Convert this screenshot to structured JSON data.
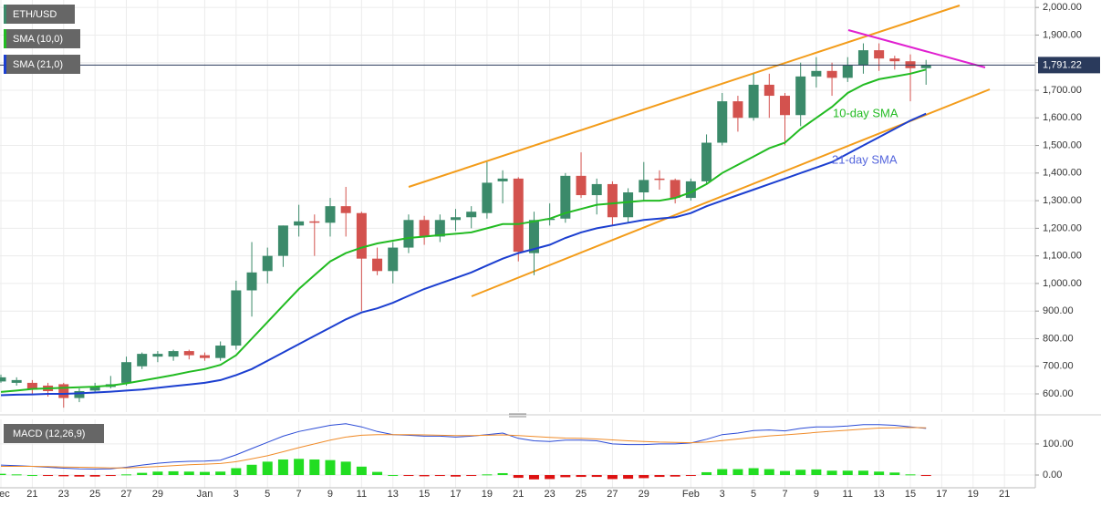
{
  "chart_data": [
    {
      "type": "candlestick",
      "name": "ETH/USD",
      "categories": [
        "Dec",
        null,
        "21",
        null,
        "23",
        null,
        "25",
        null,
        "27",
        null,
        "29",
        null,
        null,
        "Jan",
        null,
        "3",
        null,
        "5",
        null,
        "7",
        null,
        "9",
        null,
        "11",
        null,
        "13",
        null,
        "15",
        null,
        "17",
        null,
        "19",
        null,
        "21",
        null,
        "23",
        null,
        "25",
        null,
        "27",
        null,
        "29",
        null,
        null,
        "Feb",
        null,
        "3",
        null,
        "5",
        null,
        "7",
        null,
        "9",
        null,
        "11",
        null,
        "13",
        null,
        "15",
        null,
        "17",
        null,
        "19",
        null,
        "21"
      ],
      "open": [
        645,
        640,
        640,
        630,
        635,
        585,
        612,
        625,
        640,
        700,
        735,
        735,
        755,
        740,
        730,
        775,
        975,
        1045,
        1100,
        1210,
        1225,
        1220,
        1280,
        1255,
        1090,
        1045,
        1130,
        1230,
        1170,
        1230,
        1240,
        1255,
        1370,
        1380,
        1110,
        1230,
        1235,
        1390,
        1320,
        1360,
        1240,
        1330,
        1380,
        1375,
        1310,
        1370,
        1510,
        1660,
        1600,
        1720,
        1680,
        1610,
        1750,
        1770,
        1745,
        1790,
        1845,
        1815,
        1805,
        1780,
        null,
        null,
        null,
        null,
        null
      ],
      "high": [
        670,
        660,
        650,
        640,
        640,
        620,
        640,
        665,
        735,
        750,
        755,
        760,
        760,
        750,
        790,
        1010,
        1150,
        1130,
        1210,
        1285,
        1250,
        1310,
        1350,
        1260,
        1130,
        1150,
        1250,
        1245,
        1250,
        1270,
        1280,
        1440,
        1410,
        1385,
        1260,
        1290,
        1400,
        1475,
        1380,
        1370,
        1345,
        1440,
        1410,
        1380,
        1380,
        1540,
        1690,
        1680,
        1760,
        1760,
        1690,
        1800,
        1820,
        1800,
        1820,
        1870,
        1870,
        1825,
        1830,
        1810,
        null,
        null,
        null,
        null,
        null
      ],
      "low": [
        640,
        630,
        600,
        590,
        550,
        570,
        605,
        620,
        630,
        690,
        715,
        720,
        725,
        720,
        720,
        760,
        880,
        1000,
        1060,
        1170,
        1100,
        1170,
        1170,
        900,
        1030,
        1000,
        1110,
        1140,
        1150,
        1190,
        1200,
        1235,
        1290,
        1080,
        1030,
        1210,
        1220,
        1310,
        1250,
        1210,
        1220,
        1300,
        1340,
        1290,
        1300,
        1360,
        1500,
        1550,
        1590,
        1600,
        1500,
        1570,
        1710,
        1680,
        1730,
        1760,
        1770,
        1775,
        1660,
        1720,
        null,
        null,
        null,
        null,
        null
      ],
      "close": [
        660,
        650,
        615,
        610,
        585,
        610,
        625,
        635,
        715,
        745,
        745,
        755,
        740,
        730,
        775,
        975,
        1040,
        1100,
        1210,
        1225,
        1220,
        1280,
        1255,
        1090,
        1045,
        1130,
        1230,
        1170,
        1230,
        1240,
        1260,
        1365,
        1380,
        1115,
        1230,
        1235,
        1390,
        1320,
        1360,
        1240,
        1330,
        1375,
        1375,
        1310,
        1370,
        1510,
        1660,
        1600,
        1720,
        1680,
        1610,
        1750,
        1770,
        1745,
        1790,
        1845,
        1815,
        1805,
        1780,
        1791.22,
        null,
        null,
        null,
        null,
        null
      ],
      "up_color": "#3b8a6a",
      "down_color": "#d3524e",
      "series": [
        {
          "name": "SMA (10,0)",
          "color": "#22bb22",
          "values": [
            607,
            612,
            618,
            620,
            622,
            624,
            626,
            630,
            638,
            648,
            658,
            668,
            680,
            690,
            705,
            740,
            800,
            860,
            920,
            980,
            1030,
            1080,
            1110,
            1130,
            1145,
            1155,
            1165,
            1170,
            1175,
            1180,
            1185,
            1200,
            1215,
            1215,
            1225,
            1235,
            1255,
            1270,
            1285,
            1290,
            1295,
            1300,
            1300,
            1310,
            1330,
            1360,
            1400,
            1430,
            1460,
            1490,
            1510,
            1560,
            1600,
            1640,
            1690,
            1720,
            1740,
            1750,
            1760,
            1775,
            null,
            null,
            null,
            null,
            null
          ]
        },
        {
          "name": "SMA (21,0)",
          "color": "#1c3fd0",
          "values": [
            595,
            597,
            598,
            600,
            600,
            602,
            605,
            608,
            612,
            616,
            622,
            628,
            634,
            640,
            650,
            668,
            690,
            720,
            750,
            780,
            810,
            840,
            870,
            895,
            910,
            930,
            955,
            980,
            1000,
            1020,
            1040,
            1065,
            1090,
            1110,
            1125,
            1140,
            1165,
            1185,
            1200,
            1210,
            1220,
            1230,
            1235,
            1240,
            1255,
            1280,
            1300,
            1320,
            1340,
            1360,
            1380,
            1400,
            1420,
            1440,
            1470,
            1500,
            1530,
            1560,
            1590,
            1615,
            null,
            null,
            null,
            null,
            null
          ]
        }
      ],
      "annotations": [
        "10-day SMA",
        "21-day SMA"
      ],
      "last_price": {
        "value": 1791.22,
        "label": "1,791.22"
      },
      "ylim": [
        534,
        2027
      ],
      "yticks": [
        {
          "value": 600,
          "label": "600.00"
        },
        {
          "value": 700,
          "label": "700.00"
        },
        {
          "value": 800,
          "label": "800.00"
        },
        {
          "value": 900,
          "label": "900.00"
        },
        {
          "value": 1000,
          "label": "1,000.00"
        },
        {
          "value": 1100,
          "label": "1,100.00"
        },
        {
          "value": 1200,
          "label": "1,200.00"
        },
        {
          "value": 1300,
          "label": "1,300.00"
        },
        {
          "value": 1400,
          "label": "1,400.00"
        },
        {
          "value": 1500,
          "label": "1,500.00"
        },
        {
          "value": 1600,
          "label": "1,600.00"
        },
        {
          "value": 1700,
          "label": "1,700.00"
        },
        {
          "value": 1800,
          "label": "1,800.00"
        },
        {
          "value": 1900,
          "label": "1,900.00"
        },
        {
          "value": 2000,
          "label": "2,000.00"
        }
      ],
      "grid": true
    },
    {
      "type": "macd",
      "name": "MACD (12,26,9)",
      "series": [
        {
          "color": "#2b4bd6",
          "values": [
            32,
            30,
            28,
            25,
            22,
            20,
            19,
            20,
            25,
            32,
            38,
            42,
            44,
            45,
            48,
            65,
            85,
            105,
            125,
            140,
            150,
            160,
            165,
            155,
            140,
            130,
            128,
            125,
            125,
            122,
            125,
            130,
            135,
            118,
            110,
            108,
            112,
            112,
            110,
            100,
            98,
            98,
            100,
            100,
            103,
            115,
            130,
            135,
            143,
            145,
            142,
            150,
            155,
            155,
            158,
            162,
            162,
            160,
            155,
            150,
            null,
            null,
            null,
            null,
            null
          ]
        },
        {
          "color": "#f08c2a",
          "values": [
            28,
            28,
            28,
            27,
            26,
            25,
            24,
            23,
            23,
            25,
            27,
            30,
            33,
            35,
            37,
            43,
            52,
            62,
            75,
            88,
            100,
            112,
            122,
            128,
            130,
            130,
            130,
            129,
            128,
            127,
            127,
            128,
            129,
            127,
            124,
            121,
            119,
            118,
            116,
            113,
            110,
            108,
            106,
            105,
            104,
            106,
            111,
            116,
            121,
            126,
            129,
            133,
            137,
            141,
            144,
            148,
            151,
            152,
            153,
            152,
            null,
            null,
            null,
            null,
            null
          ]
        }
      ],
      "histogram": {
        "up_color": "#22dd22",
        "down_color": "#dd1111",
        "values": [
          4,
          2,
          0,
          -2,
          -4,
          -5,
          -5,
          -3,
          2,
          7,
          11,
          12,
          11,
          10,
          11,
          22,
          33,
          43,
          50,
          52,
          50,
          48,
          43,
          27,
          10,
          0,
          -2,
          -4,
          -3,
          -5,
          -2,
          2,
          6,
          -9,
          -14,
          -13,
          -7,
          -6,
          -6,
          -13,
          -12,
          -10,
          -6,
          -5,
          -1,
          9,
          19,
          19,
          22,
          19,
          13,
          17,
          18,
          14,
          14,
          14,
          11,
          8,
          2,
          -2,
          null,
          null,
          null,
          null,
          null
        ]
      },
      "ylim": [
        -41,
        179
      ],
      "yticks": [
        {
          "value": 0,
          "label": "0.00"
        },
        {
          "value": 100,
          "label": "100.00"
        }
      ],
      "grid": true
    }
  ]
}
